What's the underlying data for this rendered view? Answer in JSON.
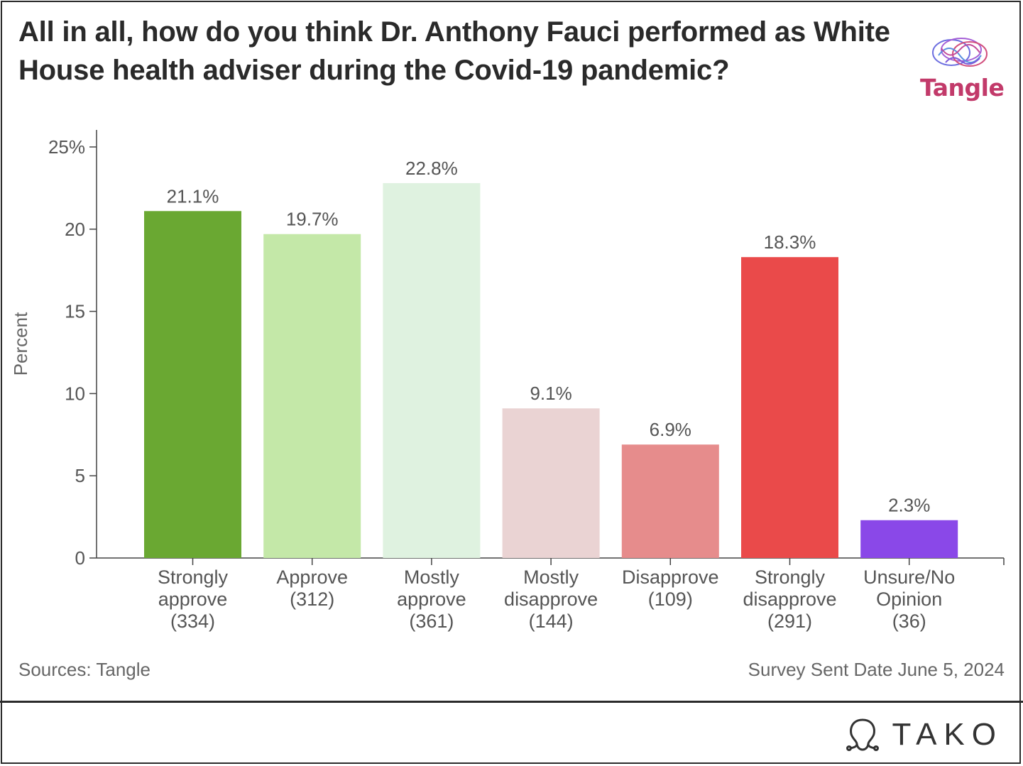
{
  "title": "All in all, how do you think Dr. Anthony Fauci performed as White House health adviser during the Covid-19 pandemic?",
  "logo_text": "Tangle",
  "footer": {
    "sources": "Sources: Tangle",
    "date": "Survey Sent Date June 5, 2024"
  },
  "brand": "TAKO",
  "chart_data": {
    "type": "bar",
    "ylabel": "Percent",
    "ylim": [
      0,
      25
    ],
    "y_ticks": [
      0,
      5,
      10,
      15,
      20,
      25
    ],
    "y_tick_labels": [
      "0",
      "5",
      "10",
      "15",
      "20",
      "25%"
    ],
    "grid": false,
    "categories": [
      [
        "Strongly",
        "approve",
        "(334)"
      ],
      [
        "Approve",
        "(312)"
      ],
      [
        "Mostly",
        "approve",
        "(361)"
      ],
      [
        "Mostly",
        "disapprove",
        "(144)"
      ],
      [
        "Disapprove",
        "(109)"
      ],
      [
        "Strongly",
        "disapprove",
        "(291)"
      ],
      [
        "Unsure/No",
        "Opinion",
        "(36)"
      ]
    ],
    "values": [
      21.1,
      19.7,
      22.8,
      9.1,
      6.9,
      18.3,
      2.3
    ],
    "data_labels": [
      "21.1%",
      "19.7%",
      "22.8%",
      "9.1%",
      "6.9%",
      "18.3%",
      "2.3%"
    ],
    "colors": [
      "#6aa832",
      "#c4e8a8",
      "#dff2e0",
      "#ead3d3",
      "#e68c8c",
      "#ea4a4a",
      "#8a48e8"
    ]
  }
}
